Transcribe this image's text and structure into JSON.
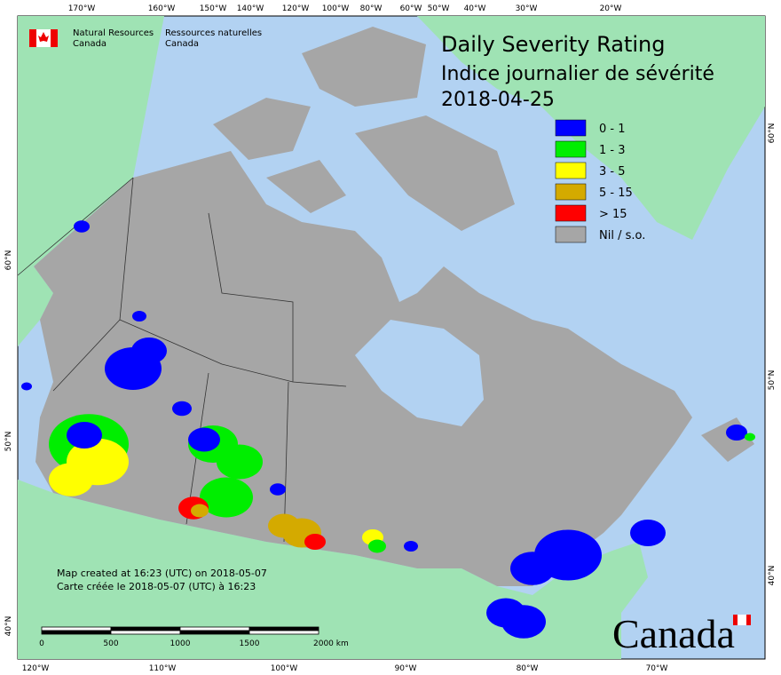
{
  "header": {
    "dept_en": [
      "Natural Resources",
      "Canada"
    ],
    "dept_fr": [
      "Ressources naturelles",
      "Canada"
    ],
    "title": "Daily Severity Rating",
    "title_fr": "Indice journalier de sévérité",
    "date": "2018-04-25"
  },
  "legend": [
    {
      "label": "0 - 1",
      "color": "#0000ff"
    },
    {
      "label": "1 - 3",
      "color": "#00ee00"
    },
    {
      "label": "3 - 5",
      "color": "#ffff00"
    },
    {
      "label": "5 - 15",
      "color": "#d4aa00"
    },
    {
      "label": "> 15",
      "color": "#ff0000"
    },
    {
      "label": "Nil / s.o.",
      "color": "#a6a6a6"
    }
  ],
  "top_labels": [
    "170°W",
    "160°W",
    "150°W",
    "140°W",
    "120°W",
    "100°W",
    "80°W",
    "60°W",
    "50°W",
    "40°W",
    "30°W",
    "20°W"
  ],
  "bottom_labels": [
    "120°W",
    "110°W",
    "100°W",
    "90°W",
    "80°W",
    "70°W"
  ],
  "left_labels": [
    "60°N",
    "50°N",
    "40°N"
  ],
  "right_labels": [
    "60°N",
    "50°N",
    "40°N"
  ],
  "notes": [
    "Map created at 16:23 (UTC) on 2018-05-07",
    "Carte créée le 2018-05-07 (UTC) à 16:23"
  ],
  "scale_labels": [
    "0",
    "500",
    "1000",
    "1500",
    "2000 km"
  ],
  "wordmark": "Canada"
}
